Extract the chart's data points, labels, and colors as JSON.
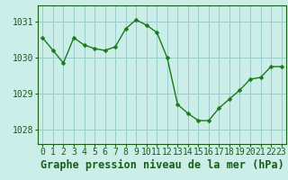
{
  "x": [
    0,
    1,
    2,
    3,
    4,
    5,
    6,
    7,
    8,
    9,
    10,
    11,
    12,
    13,
    14,
    15,
    16,
    17,
    18,
    19,
    20,
    21,
    22,
    23
  ],
  "y": [
    1030.55,
    1030.2,
    1029.85,
    1030.55,
    1030.35,
    1030.25,
    1030.2,
    1030.3,
    1030.8,
    1031.05,
    1030.9,
    1030.7,
    1030.0,
    1028.7,
    1028.45,
    1028.25,
    1028.25,
    1028.6,
    1028.85,
    1029.1,
    1029.4,
    1029.45,
    1029.75,
    1029.75
  ],
  "line_color": "#1a7a1a",
  "marker": "D",
  "marker_size": 2.5,
  "bg_color": "#cceee8",
  "grid_color": "#99cccc",
  "axis_color": "#1a5c1a",
  "title": "Graphe pression niveau de la mer (hPa)",
  "ylabel_ticks": [
    1028,
    1029,
    1030,
    1031
  ],
  "ylim": [
    1027.6,
    1031.45
  ],
  "xlim": [
    -0.5,
    23.5
  ],
  "title_fontsize": 8.5,
  "tick_fontsize": 7.0,
  "linewidth": 1.0
}
